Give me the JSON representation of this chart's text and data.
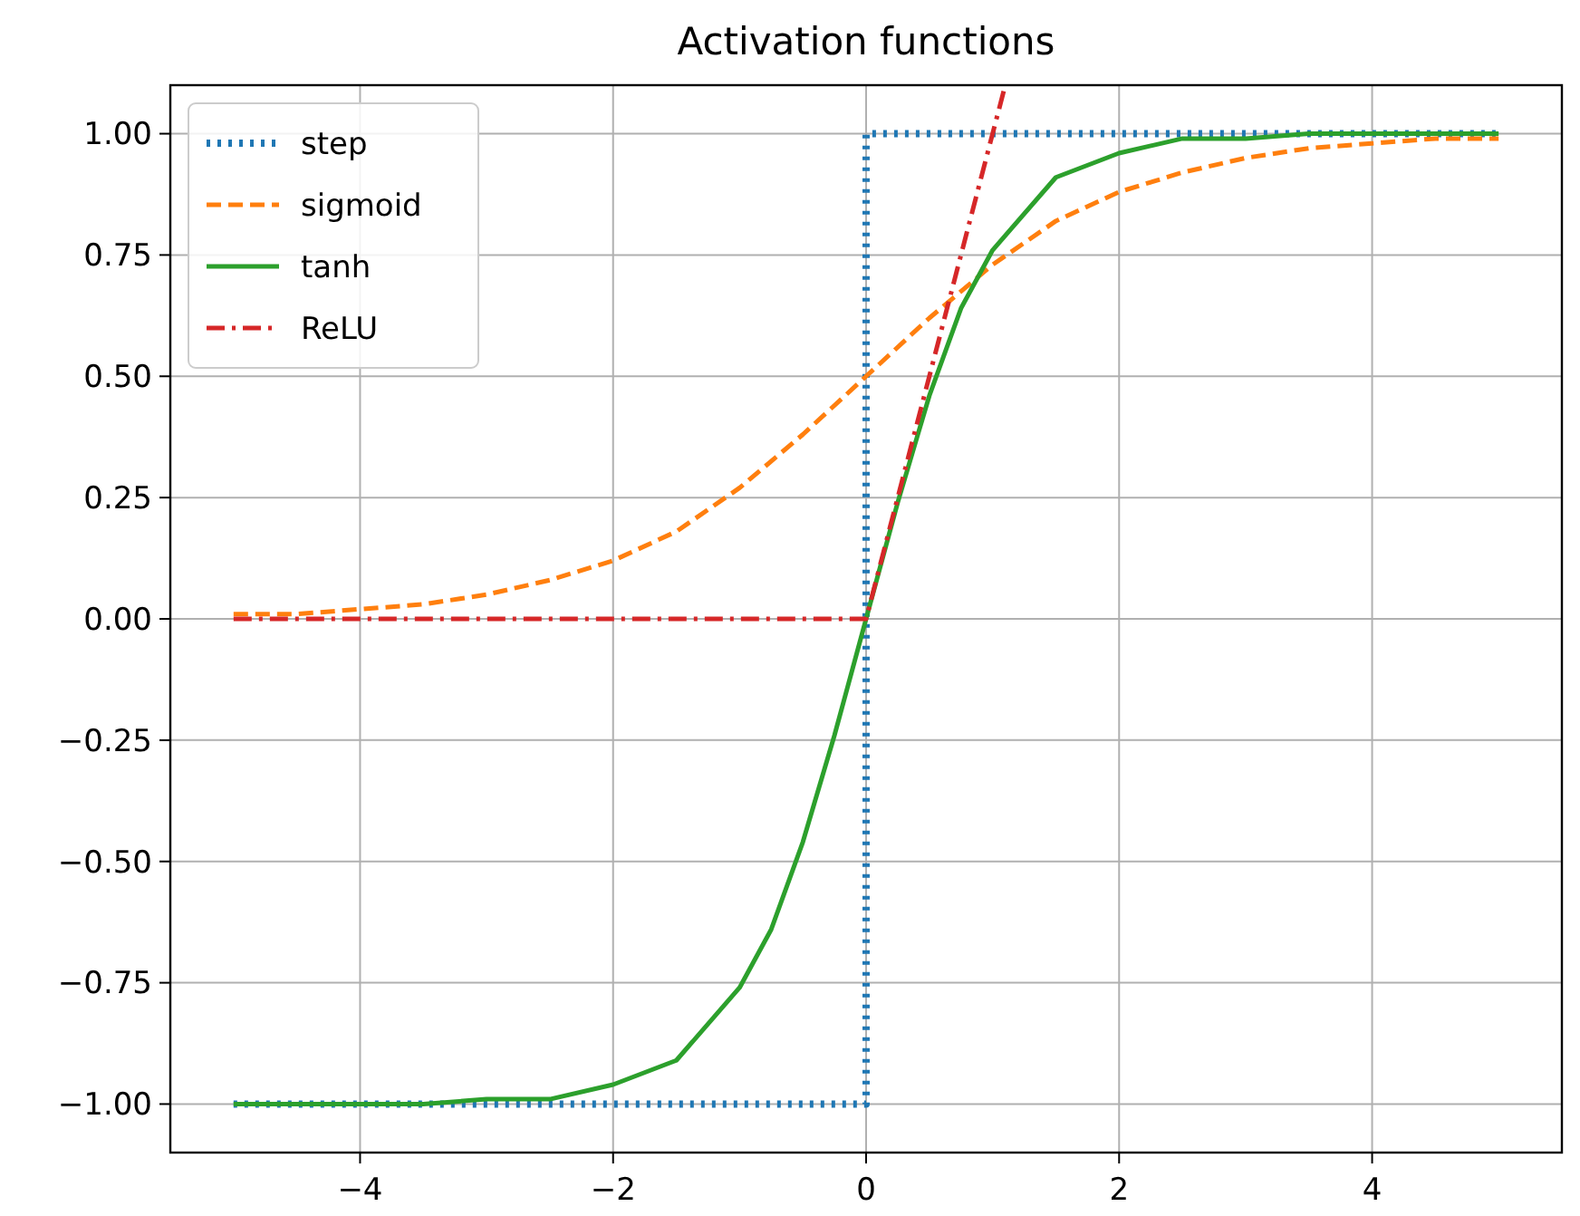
{
  "chart_data": {
    "type": "line",
    "title": "Activation functions",
    "xlim": [
      -5.5,
      5.5
    ],
    "ylim": [
      -1.1,
      1.1
    ],
    "xticks": [
      {
        "value": -4,
        "label": "−4"
      },
      {
        "value": -2,
        "label": "−2"
      },
      0,
      2,
      4
    ],
    "yticks": [
      {
        "value": -1,
        "label": "−1.00"
      },
      {
        "value": -0.75,
        "label": "−0.75"
      },
      {
        "value": -0.5,
        "label": "−0.50"
      },
      {
        "value": -0.25,
        "label": "−0.25"
      },
      {
        "value": 0,
        "label": "0.00"
      },
      {
        "value": 0.25,
        "label": "0.25"
      },
      {
        "value": 0.5,
        "label": "0.50"
      },
      {
        "value": 0.75,
        "label": "0.75"
      },
      {
        "value": 1,
        "label": "1.00"
      }
    ],
    "grid": true,
    "legend": "top left",
    "marker": "none",
    "series": [
      {
        "name": "step",
        "color": "#1f77b4",
        "line_style": "dotted",
        "x": [
          -5,
          0,
          0,
          5
        ],
        "values": [
          -1,
          -1,
          1,
          1
        ]
      },
      {
        "name": "sigmoid",
        "color": "#ff7f0e",
        "line_style": "dashed",
        "x": [
          -5,
          -4.5,
          -4,
          -3.5,
          -3,
          -2.5,
          -2,
          -1.5,
          -1,
          -0.5,
          0,
          0.5,
          1,
          1.5,
          2,
          2.5,
          3,
          3.5,
          4,
          4.5,
          5
        ],
        "values": [
          0.01,
          0.01,
          0.02,
          0.03,
          0.05,
          0.08,
          0.12,
          0.18,
          0.27,
          0.38,
          0.5,
          0.62,
          0.73,
          0.82,
          0.88,
          0.92,
          0.95,
          0.97,
          0.98,
          0.99,
          0.99
        ]
      },
      {
        "name": "tanh",
        "color": "#2ca02c",
        "line_style": "solid",
        "x": [
          -5,
          -4,
          -3.5,
          -3,
          -2.5,
          -2,
          -1.5,
          -1,
          -0.75,
          -0.5,
          -0.25,
          0,
          0.25,
          0.5,
          0.75,
          1,
          1.5,
          2,
          2.5,
          3,
          3.5,
          4,
          5
        ],
        "values": [
          -1,
          -1,
          -1,
          -0.99,
          -0.99,
          -0.96,
          -0.91,
          -0.76,
          -0.64,
          -0.46,
          -0.24,
          0,
          0.24,
          0.46,
          0.64,
          0.76,
          0.91,
          0.96,
          0.99,
          0.99,
          1,
          1,
          1
        ]
      },
      {
        "name": "ReLU",
        "color": "#d62728",
        "line_style": "dashdot",
        "x": [
          -5,
          0,
          1.1
        ],
        "values": [
          0,
          0,
          1.1
        ]
      }
    ]
  }
}
